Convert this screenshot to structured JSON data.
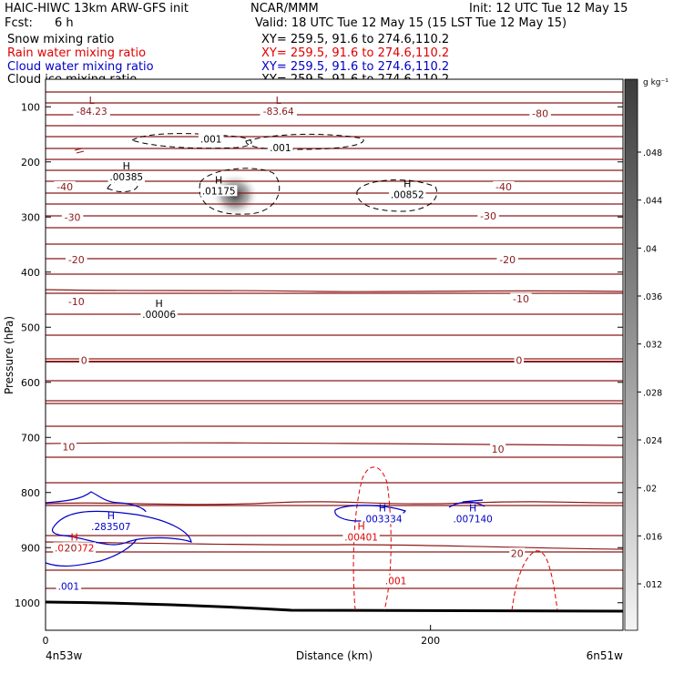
{
  "header": {
    "title": "HAIC-HIWC 13km ARW-GFS init",
    "org": "NCAR/MMM",
    "init": "Init: 12 UTC Tue 12 May 15",
    "fcst_label": "Fcst:",
    "fcst_value": "6 h",
    "valid": "Valid: 18 UTC Tue 12 May 15 (15 LST Tue 12 May 15)"
  },
  "legend": [
    {
      "label": "Snow mixing ratio",
      "xy": "XY= 259.5, 91.6 to 274.6,110.2",
      "color": "#000000"
    },
    {
      "label": "Rain water mixing ratio",
      "xy": "XY= 259.5, 91.6 to 274.6,110.2",
      "color": "#e00000"
    },
    {
      "label": "Cloud water mixing ratio",
      "xy": "XY= 259.5, 91.6 to 274.6,110.2",
      "color": "#0000c8"
    },
    {
      "label": "Cloud ice mixing ratio",
      "xy": "XY= 259.5, 91.6 to 274.6,110.2",
      "color": "#000000"
    }
  ],
  "chart_data": {
    "type": "contour",
    "xlabel": "Distance (km)",
    "ylabel": "Pressure (hPa)",
    "xlim": [
      0,
      300
    ],
    "ylim": [
      1050,
      50
    ],
    "x_ticks": [
      0,
      200
    ],
    "y_ticks": [
      100,
      200,
      300,
      400,
      500,
      600,
      700,
      800,
      900,
      1000
    ],
    "endpoint_left": "4n53w",
    "endpoint_right": "6n51w",
    "colorbar": {
      "unit": "g kg⁻¹",
      "ticks": [
        ".048",
        ".044",
        ".04",
        ".036",
        ".032",
        ".028",
        ".024",
        ".02",
        ".016",
        ".012"
      ]
    },
    "temperature_labels": [
      {
        "x": 257,
        "p": 112,
        "text": "-80"
      },
      {
        "x": 10,
        "p": 245,
        "text": "-40"
      },
      {
        "x": 238,
        "p": 245,
        "text": "-40"
      },
      {
        "x": 14,
        "p": 300,
        "text": "-30"
      },
      {
        "x": 230,
        "p": 298,
        "text": "-30"
      },
      {
        "x": 16,
        "p": 377,
        "text": "-20"
      },
      {
        "x": 240,
        "p": 377,
        "text": "-20"
      },
      {
        "x": 16,
        "p": 453,
        "text": "-10"
      },
      {
        "x": 247,
        "p": 448,
        "text": "-10"
      },
      {
        "x": 20,
        "p": 560,
        "text": "0"
      },
      {
        "x": 246,
        "p": 560,
        "text": "0"
      },
      {
        "x": 12,
        "p": 717,
        "text": "10"
      },
      {
        "x": 235,
        "p": 721,
        "text": "10"
      },
      {
        "x": 13,
        "p": 900,
        "text": "20"
      },
      {
        "x": 245,
        "p": 910,
        "text": "20"
      }
    ],
    "extrema": [
      {
        "x": 24,
        "p": 95,
        "letter": "L",
        "value": "-84.23",
        "color": "#8b1a1a"
      },
      {
        "x": 121,
        "p": 95,
        "letter": "L",
        "value": "-83.64",
        "color": "#8b1a1a"
      },
      {
        "x": 42,
        "p": 214,
        "letter": "H",
        "value": ".00385",
        "color": "#000000"
      },
      {
        "x": 90,
        "p": 239,
        "letter": "H",
        "value": ".01175",
        "color": "#000000"
      },
      {
        "x": 188,
        "p": 246,
        "letter": "H",
        "value": ".00852",
        "color": "#000000"
      },
      {
        "x": 59,
        "p": 463,
        "letter": "H",
        "value": ".00006",
        "color": "#000000"
      },
      {
        "x": 15,
        "p": 887,
        "letter": "H",
        "value": ".000072",
        "color": "#e00000"
      },
      {
        "x": 34,
        "p": 848,
        "letter": "H",
        "value": ".283507",
        "color": "#0000c8"
      },
      {
        "x": 175,
        "p": 834,
        "letter": "H",
        "value": ".003334",
        "color": "#0000c8"
      },
      {
        "x": 222,
        "p": 834,
        "letter": "H",
        "value": ".007140",
        "color": "#0000c8"
      },
      {
        "x": 164,
        "p": 867,
        "letter": "H",
        "value": ".00401",
        "color": "#e00000"
      }
    ],
    "contour_labels": [
      {
        "x": 86,
        "p": 158,
        "text": ".001",
        "color": "#000000"
      },
      {
        "x": 122,
        "p": 174,
        "text": ".001",
        "color": "#000000"
      },
      {
        "x": 182,
        "p": 960,
        "text": ".001",
        "color": "#e00000"
      },
      {
        "x": 12,
        "p": 970,
        "text": ".001",
        "color": "#0000c8"
      }
    ]
  }
}
